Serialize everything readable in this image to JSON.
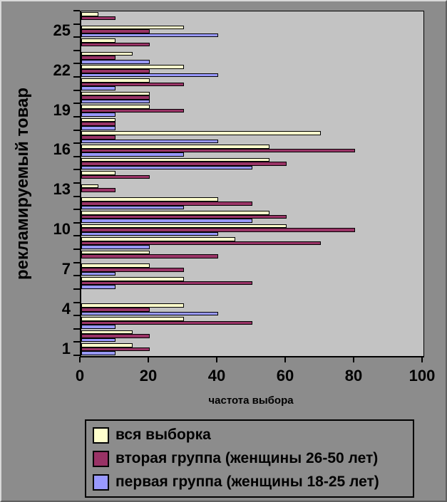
{
  "chart_data": {
    "type": "bar",
    "orientation": "horizontal",
    "title": "",
    "xlabel": "частота выбора",
    "ylabel": "рекламируемый товар",
    "xlim": [
      0,
      100
    ],
    "x_ticks": [
      0,
      20,
      40,
      60,
      80,
      100
    ],
    "y_labeled_categories": [
      25,
      22,
      19,
      16,
      13,
      10,
      7,
      4,
      1
    ],
    "grid": false,
    "legend_position": "bottom",
    "plot_bg": "#C3C3C3",
    "page_bg": "#8C8C8C",
    "categories": [
      1,
      2,
      3,
      4,
      5,
      6,
      7,
      8,
      9,
      10,
      11,
      12,
      13,
      14,
      15,
      16,
      17,
      18,
      19,
      20,
      21,
      22,
      23,
      24,
      25,
      26
    ],
    "series": [
      {
        "name": "вся выборка",
        "color": "#FFFFCC",
        "values": [
          15,
          15,
          30,
          30,
          0,
          30,
          20,
          20,
          45,
          60,
          55,
          40,
          5,
          10,
          55,
          55,
          70,
          10,
          20,
          20,
          20,
          30,
          15,
          10,
          30,
          5
        ]
      },
      {
        "name": "вторая группа (женщины 26-50 лет)",
        "color": "#993366",
        "values": [
          20,
          20,
          50,
          20,
          0,
          50,
          30,
          40,
          70,
          80,
          60,
          50,
          10,
          20,
          60,
          80,
          10,
          10,
          30,
          20,
          30,
          20,
          10,
          20,
          20,
          10
        ]
      },
      {
        "name": "первая группа (женщины 18-25 лет)",
        "color": "#9999FF",
        "values": [
          10,
          10,
          10,
          40,
          0,
          10,
          10,
          0,
          20,
          40,
          50,
          30,
          0,
          0,
          50,
          30,
          40,
          10,
          10,
          20,
          10,
          40,
          20,
          0,
          40,
          0
        ]
      }
    ]
  }
}
